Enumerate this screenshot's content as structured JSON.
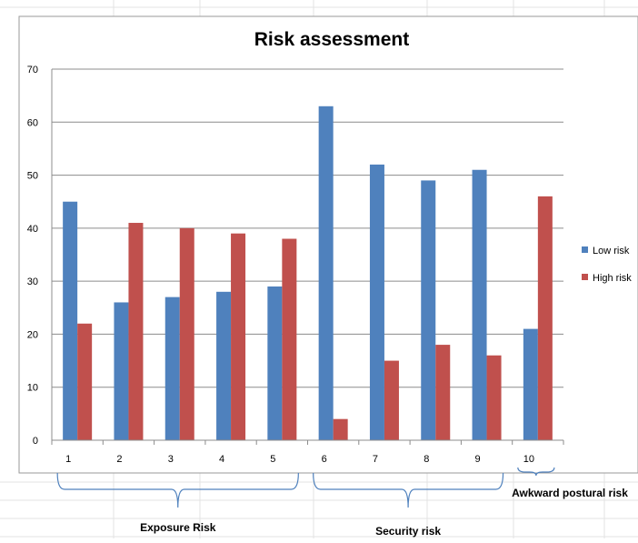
{
  "chart_data": {
    "type": "bar",
    "title": "Risk assessment",
    "categories": [
      "1",
      "2",
      "3",
      "4",
      "5",
      "6",
      "7",
      "8",
      "9",
      "10"
    ],
    "series": [
      {
        "name": "Low risk",
        "color": "#4F81BD",
        "values": [
          45,
          26,
          27,
          28,
          29,
          63,
          52,
          49,
          51,
          21
        ]
      },
      {
        "name": "High risk",
        "color": "#C0504D",
        "values": [
          22,
          41,
          40,
          39,
          38,
          4,
          15,
          18,
          16,
          46
        ]
      }
    ],
    "ylim": [
      0,
      70
    ],
    "yticks": [
      0,
      10,
      20,
      30,
      40,
      50,
      60,
      70
    ],
    "grid": true,
    "legend": "right",
    "groups": [
      {
        "label": "Exposure Risk",
        "from": "1",
        "to": "5"
      },
      {
        "label": "Security risk",
        "from": "6",
        "to": "9"
      },
      {
        "label": "Awkward postural risk",
        "from": "10",
        "to": "10"
      }
    ]
  }
}
